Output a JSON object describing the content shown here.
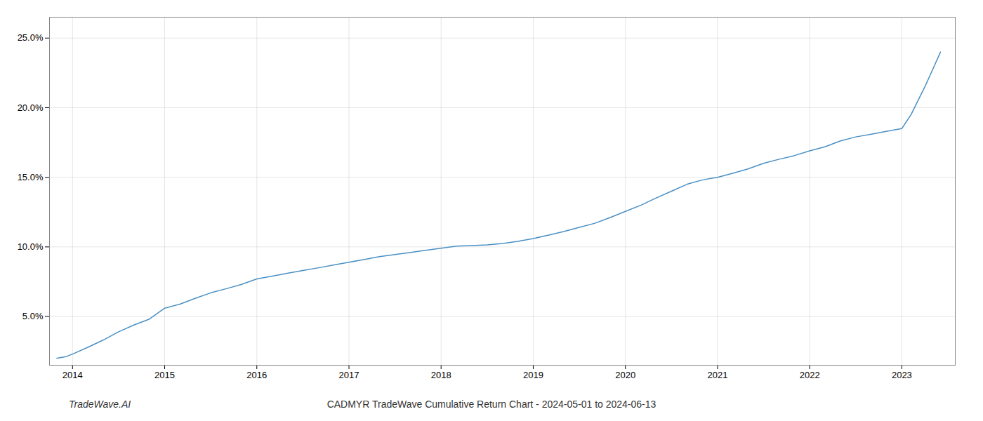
{
  "chart_data": {
    "type": "line",
    "title": "CADMYR TradeWave Cumulative Return Chart - 2024-05-01 to 2024-06-13",
    "annotations": [
      "TradeWave.AI"
    ],
    "color": "#4a90c4",
    "x": [
      2013.83,
      2013.92,
      2014.0,
      2014.17,
      2014.33,
      2014.5,
      2014.67,
      2014.83,
      2015.0,
      2015.17,
      2015.33,
      2015.5,
      2015.67,
      2015.83,
      2016.0,
      2016.17,
      2016.33,
      2016.5,
      2016.67,
      2016.83,
      2017.0,
      2017.17,
      2017.33,
      2017.5,
      2017.67,
      2017.83,
      2018.0,
      2018.17,
      2018.33,
      2018.5,
      2018.67,
      2018.83,
      2019.0,
      2019.17,
      2019.33,
      2019.5,
      2019.67,
      2019.83,
      2020.0,
      2020.17,
      2020.33,
      2020.5,
      2020.67,
      2020.83,
      2021.0,
      2021.17,
      2021.33,
      2021.5,
      2021.67,
      2021.83,
      2022.0,
      2022.17,
      2022.33,
      2022.5,
      2022.67,
      2022.83,
      2023.0,
      2023.1,
      2023.25,
      2023.42
    ],
    "values": [
      2.0,
      2.1,
      2.3,
      2.8,
      3.3,
      3.9,
      4.4,
      4.8,
      5.6,
      5.9,
      6.3,
      6.7,
      7.0,
      7.3,
      7.7,
      7.9,
      8.1,
      8.3,
      8.5,
      8.7,
      8.9,
      9.1,
      9.3,
      9.45,
      9.6,
      9.75,
      9.9,
      10.05,
      10.1,
      10.15,
      10.25,
      10.4,
      10.6,
      10.85,
      11.1,
      11.4,
      11.7,
      12.1,
      12.55,
      13.0,
      13.5,
      14.0,
      14.5,
      14.8,
      15.0,
      15.3,
      15.6,
      16.0,
      16.3,
      16.55,
      16.9,
      17.2,
      17.6,
      17.9,
      18.1,
      18.3,
      18.5,
      19.5,
      21.5,
      24.0
    ],
    "xlim": [
      2013.75,
      2023.58
    ],
    "ylim": [
      1.5,
      26.5
    ],
    "xticks": [
      2014,
      2015,
      2016,
      2017,
      2018,
      2019,
      2020,
      2021,
      2022,
      2023
    ],
    "yticks": [
      {
        "value": 5.0,
        "label": "5.0%"
      },
      {
        "value": 10.0,
        "label": "10.0%"
      },
      {
        "value": 15.0,
        "label": "15.0%"
      },
      {
        "value": 20.0,
        "label": "20.0%"
      },
      {
        "value": 25.0,
        "label": "25.0%"
      }
    ],
    "grid": true
  }
}
